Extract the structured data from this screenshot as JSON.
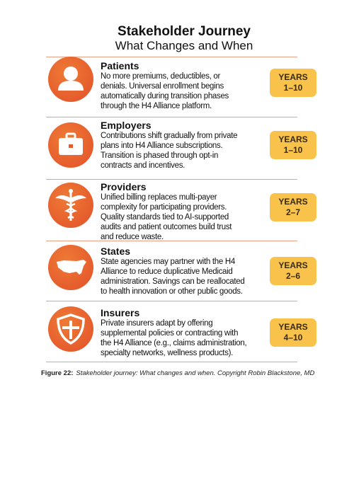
{
  "header": {
    "title": "Stakeholder Journey",
    "subtitle": "What Changes and When"
  },
  "rows": [
    {
      "heading": "Patients",
      "lines": [
        "No more premiums, deductibles, or",
        "denials. Universal enrollment begins",
        "automatically during transition phases",
        "through the H4 Alliance platform."
      ],
      "badge_label": "YEARS",
      "years": "1–10"
    },
    {
      "heading": "Employers",
      "lines": [
        "Contributions shift gradually from private",
        "plans into H4 Alliance subscriptions.",
        "Transition is phased through opt-in",
        "contracts and incentives."
      ],
      "badge_label": "YEARS",
      "years": "1–10"
    },
    {
      "heading": "Providers",
      "lines": [
        "Unified billing replaces multi-payer",
        "complexity for participating providers.",
        "Quality standards tied to AI-supported",
        "audits and patient outcomes build trust",
        "and reduce waste."
      ],
      "badge_label": "YEARS",
      "years": "2–7"
    },
    {
      "heading": "States",
      "lines": [
        "State agencies may partner with the H4",
        "Alliance to reduce duplicative Medicaid",
        "administration. Savings can be reallocated",
        "to health innovation or other public goods."
      ],
      "badge_label": "YEARS",
      "years": "2–6"
    },
    {
      "heading": "Insurers",
      "lines": [
        "Private insurers adapt by offering",
        "supplemental policies or contracting with",
        "the H4 Alliance (e.g., claims administration,",
        "specialty networks, wellness products)."
      ],
      "badge_label": "YEARS",
      "years": "4–10"
    }
  ],
  "caption": {
    "label": "Figure 22:",
    "text": "Stakeholder journey: What changes and when. Copyright Robin Blackstone, MD"
  }
}
